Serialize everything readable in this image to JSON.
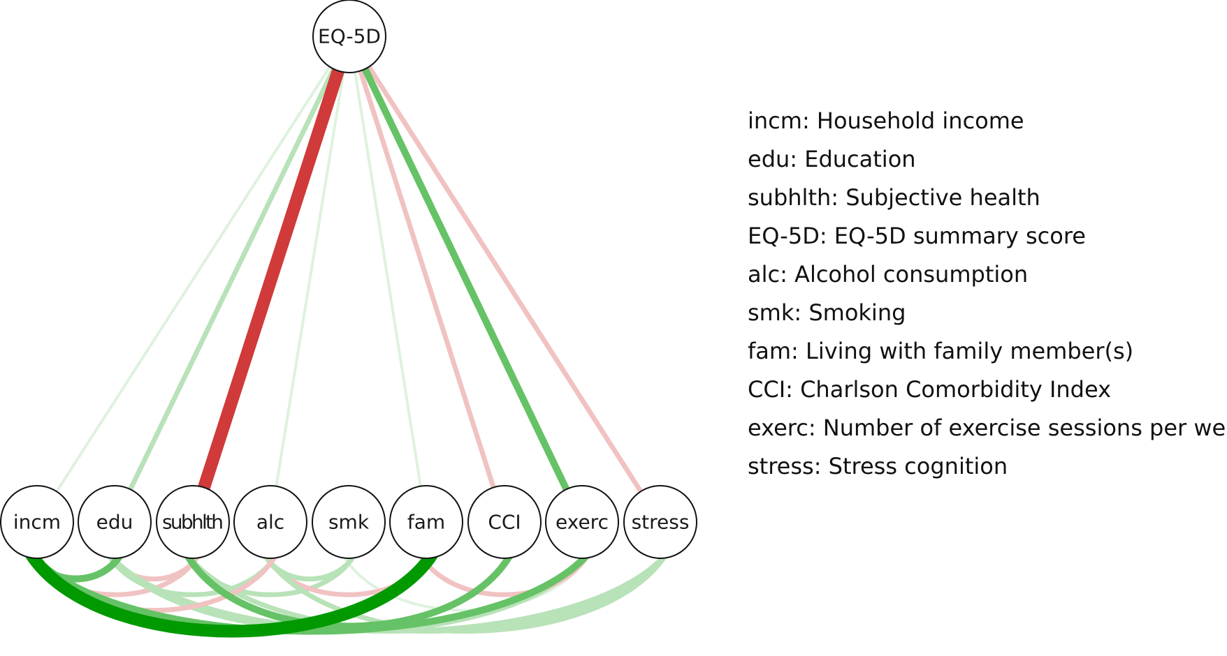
{
  "colors": {
    "positive_strong": "#009900",
    "positive_mid": "#66c266",
    "positive_light": "#b8e2b8",
    "positive_faint": "#def2de",
    "negative_strong": "#d03a3a",
    "negative_light": "#f1c2c2"
  },
  "nodes": [
    {
      "id": "EQ-5D",
      "label": "EQ-5D"
    },
    {
      "id": "incm",
      "label": "incm"
    },
    {
      "id": "edu",
      "label": "edu"
    },
    {
      "id": "subhlth",
      "label": "subhlth"
    },
    {
      "id": "alc",
      "label": "alc"
    },
    {
      "id": "smk",
      "label": "smk"
    },
    {
      "id": "fam",
      "label": "fam"
    },
    {
      "id": "CCI",
      "label": "CCI"
    },
    {
      "id": "exerc",
      "label": "exerc"
    },
    {
      "id": "stress",
      "label": "stress"
    }
  ],
  "edges": [
    {
      "from": "EQ-5D",
      "to": "incm",
      "sign": "positive",
      "strength": "faint"
    },
    {
      "from": "EQ-5D",
      "to": "edu",
      "sign": "positive",
      "strength": "light"
    },
    {
      "from": "EQ-5D",
      "to": "subhlth",
      "sign": "negative",
      "strength": "strong"
    },
    {
      "from": "EQ-5D",
      "to": "alc",
      "sign": "positive",
      "strength": "faint"
    },
    {
      "from": "EQ-5D",
      "to": "fam",
      "sign": "positive",
      "strength": "faint"
    },
    {
      "from": "EQ-5D",
      "to": "CCI",
      "sign": "negative",
      "strength": "light"
    },
    {
      "from": "EQ-5D",
      "to": "exerc",
      "sign": "positive",
      "strength": "mid"
    },
    {
      "from": "EQ-5D",
      "to": "stress",
      "sign": "negative",
      "strength": "light"
    },
    {
      "from": "incm",
      "to": "fam",
      "sign": "positive",
      "strength": "strong"
    },
    {
      "from": "incm",
      "to": "edu",
      "sign": "positive",
      "strength": "mid"
    },
    {
      "from": "edu",
      "to": "subhlth",
      "sign": "negative",
      "strength": "light"
    },
    {
      "from": "incm",
      "to": "subhlth",
      "sign": "negative",
      "strength": "light"
    },
    {
      "from": "edu",
      "to": "exerc",
      "sign": "positive",
      "strength": "light"
    },
    {
      "from": "edu",
      "to": "alc",
      "sign": "positive",
      "strength": "light"
    },
    {
      "from": "subhlth",
      "to": "CCI",
      "sign": "positive",
      "strength": "mid"
    },
    {
      "from": "subhlth",
      "to": "stress",
      "sign": "positive",
      "strength": "light"
    },
    {
      "from": "subhlth",
      "to": "smk",
      "sign": "positive",
      "strength": "light"
    },
    {
      "from": "alc",
      "to": "fam",
      "sign": "negative",
      "strength": "light"
    },
    {
      "from": "alc",
      "to": "stress",
      "sign": "positive",
      "strength": "light"
    },
    {
      "from": "alc",
      "to": "smk",
      "sign": "positive",
      "strength": "light"
    },
    {
      "from": "smk",
      "to": "exerc",
      "sign": "positive",
      "strength": "faint"
    },
    {
      "from": "fam",
      "to": "exerc",
      "sign": "negative",
      "strength": "light"
    },
    {
      "from": "incm",
      "to": "exerc",
      "sign": "positive",
      "strength": "mid"
    },
    {
      "from": "edu",
      "to": "stress",
      "sign": "positive",
      "strength": "light"
    },
    {
      "from": "incm",
      "to": "alc",
      "sign": "negative",
      "strength": "light"
    }
  ],
  "legend": [
    "incm: Household income",
    "edu: Education",
    "subhlth: Subjective health",
    "EQ-5D: EQ-5D summary score",
    "alc: Alcohol consumption",
    "smk: Smoking",
    "fam: Living with family member(s)",
    "CCI: Charlson Comorbidity Index",
    "exerc: Number of exercise sessions per week",
    "stress: Stress cognition"
  ]
}
